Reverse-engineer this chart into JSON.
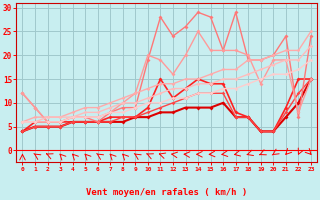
{
  "xlabel": "Vent moyen/en rafales ( km/h )",
  "bg_color": "#c8eef0",
  "grid_color": "#a0c8cc",
  "x": [
    0,
    1,
    2,
    3,
    4,
    5,
    6,
    7,
    8,
    9,
    10,
    11,
    12,
    13,
    14,
    15,
    16,
    17,
    18,
    19,
    20,
    21,
    22,
    23
  ],
  "series": [
    {
      "color": "#ff2222",
      "linewidth": 1.2,
      "marker": "D",
      "markersize": 2.0,
      "y": [
        4,
        6,
        6,
        6,
        6,
        6,
        6,
        7,
        7,
        7,
        9,
        15,
        11,
        13,
        15,
        14,
        14,
        8,
        7,
        4,
        4,
        9,
        15,
        15
      ]
    },
    {
      "color": "#dd0000",
      "linewidth": 1.5,
      "marker": "D",
      "markersize": 2.0,
      "y": [
        4,
        5,
        5,
        5,
        6,
        6,
        6,
        6,
        6,
        7,
        7,
        8,
        8,
        9,
        9,
        9,
        10,
        7,
        7,
        4,
        4,
        7,
        10,
        15
      ]
    },
    {
      "color": "#ff4444",
      "linewidth": 1.0,
      "marker": "D",
      "markersize": 1.8,
      "y": [
        4,
        5,
        5,
        5,
        6,
        6,
        6,
        6,
        7,
        7,
        8,
        9,
        10,
        11,
        12,
        12,
        12,
        7,
        7,
        4,
        4,
        8,
        12,
        15
      ]
    },
    {
      "color": "#ff7777",
      "linewidth": 1.0,
      "marker": "D",
      "markersize": 2.0,
      "y": [
        12,
        9,
        6,
        6,
        7,
        7,
        6,
        8,
        9,
        9,
        19,
        28,
        24,
        26,
        29,
        28,
        21,
        29,
        19,
        19,
        20,
        24,
        7,
        24
      ]
    },
    {
      "color": "#ff9999",
      "linewidth": 1.0,
      "marker": "D",
      "markersize": 2.0,
      "y": [
        12,
        9,
        6,
        6,
        7,
        7,
        7,
        8,
        10,
        12,
        20,
        19,
        16,
        20,
        25,
        21,
        21,
        21,
        20,
        14,
        19,
        19,
        8,
        15
      ]
    },
    {
      "color": "#ffaaaa",
      "linewidth": 1.0,
      "marker": "D",
      "markersize": 1.8,
      "y": [
        6,
        7,
        7,
        7,
        8,
        9,
        9,
        10,
        11,
        12,
        13,
        14,
        14,
        15,
        15,
        16,
        17,
        17,
        19,
        19,
        20,
        21,
        21,
        25
      ]
    },
    {
      "color": "#ffbbbb",
      "linewidth": 1.0,
      "marker": "D",
      "markersize": 1.8,
      "y": [
        6,
        6,
        7,
        7,
        7,
        8,
        8,
        9,
        10,
        10,
        11,
        12,
        13,
        13,
        14,
        14,
        15,
        15,
        16,
        17,
        18,
        19,
        19,
        22
      ]
    },
    {
      "color": "#ffcccc",
      "linewidth": 1.0,
      "marker": "D",
      "markersize": 1.8,
      "y": [
        6,
        6,
        6,
        6,
        7,
        7,
        7,
        8,
        8,
        9,
        10,
        10,
        11,
        11,
        12,
        12,
        13,
        13,
        14,
        15,
        16,
        16,
        17,
        19
      ]
    }
  ],
  "arrow_angles": [
    180,
    210,
    220,
    200,
    200,
    200,
    210,
    200,
    200,
    210,
    220,
    230,
    250,
    260,
    270,
    280,
    290,
    300,
    310,
    320,
    330,
    340,
    350,
    20
  ],
  "ylim": [
    0,
    31
  ],
  "xlim": [
    -0.5,
    23.5
  ],
  "yticks": [
    0,
    5,
    10,
    15,
    20,
    25,
    30
  ],
  "xticks": [
    0,
    1,
    2,
    3,
    4,
    5,
    6,
    7,
    8,
    9,
    10,
    11,
    12,
    13,
    14,
    15,
    16,
    17,
    18,
    19,
    20,
    21,
    22,
    23
  ]
}
